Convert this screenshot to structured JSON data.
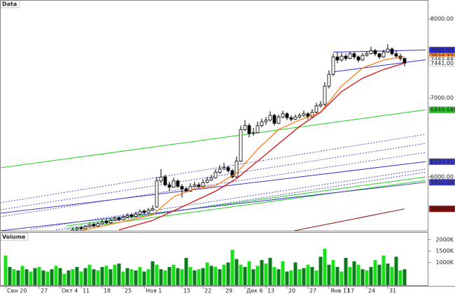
{
  "chart_data": [
    {
      "type": "candlestick",
      "label": "Data",
      "xlim": [
        -1.33,
        100.67
      ],
      "xticks": [
        {
          "value": 0,
          "label": "Сен 20"
        },
        {
          "value": 8,
          "label": "27"
        },
        {
          "value": 13,
          "label": "Окт 4"
        },
        {
          "value": 18,
          "label": "11"
        },
        {
          "value": 23,
          "label": "18"
        },
        {
          "value": 28,
          "label": "25"
        },
        {
          "value": 33,
          "label": "Ноя 1"
        },
        {
          "value": 42,
          "label": "15"
        },
        {
          "value": 47,
          "label": "22"
        },
        {
          "value": 52,
          "label": "29"
        },
        {
          "value": 57,
          "label": "Дек 6"
        },
        {
          "value": 62,
          "label": "13"
        },
        {
          "value": 67,
          "label": "20"
        },
        {
          "value": 72,
          "label": "27"
        },
        {
          "value": 77,
          "label": "Янв 11"
        },
        {
          "value": 81,
          "label": "17"
        },
        {
          "value": 86,
          "label": "24"
        },
        {
          "value": 91,
          "label": "31"
        }
      ],
      "ylim": [
        5320,
        8240
      ],
      "yticks": [
        {
          "value": 8000,
          "label": "8000.00"
        },
        {
          "value": 7000,
          "label": "7000.00"
        },
        {
          "value": 6000,
          "label": "6000.00"
        }
      ],
      "up_color": "#ffffff",
      "down_color": "#000000",
      "x": [
        16,
        17,
        18,
        19,
        20,
        21,
        22,
        23,
        24,
        25,
        26,
        27,
        28,
        29,
        30,
        31,
        32,
        33,
        34,
        35,
        36,
        37,
        38,
        39,
        40,
        41,
        42,
        43,
        44,
        45,
        46,
        47,
        48,
        49,
        50,
        51,
        52,
        53,
        54,
        55,
        56,
        57,
        58,
        59,
        60,
        61,
        62,
        63,
        64,
        65,
        66,
        67,
        68,
        69,
        70,
        71,
        72,
        73,
        74,
        75,
        76,
        77,
        78,
        79,
        80,
        81,
        82,
        83,
        84,
        85,
        86,
        87,
        88,
        89,
        90,
        91,
        92,
        93,
        94,
        95
      ],
      "ohlc": [
        [
          5310,
          5360,
          5300,
          5330
        ],
        [
          5330,
          5370,
          5320,
          5350
        ],
        [
          5360,
          5380,
          5330,
          5345
        ],
        [
          5345,
          5390,
          5330,
          5370
        ],
        [
          5370,
          5420,
          5360,
          5390
        ],
        [
          5400,
          5420,
          5360,
          5380
        ],
        [
          5380,
          5430,
          5370,
          5410
        ],
        [
          5410,
          5460,
          5400,
          5430
        ],
        [
          5440,
          5470,
          5400,
          5420
        ],
        [
          5420,
          5480,
          5410,
          5450
        ],
        [
          5450,
          5500,
          5440,
          5470
        ],
        [
          5480,
          5500,
          5440,
          5460
        ],
        [
          5460,
          5520,
          5450,
          5490
        ],
        [
          5490,
          5540,
          5480,
          5510
        ],
        [
          5520,
          5540,
          5480,
          5500
        ],
        [
          5500,
          5560,
          5490,
          5530
        ],
        [
          5530,
          5590,
          5520,
          5560
        ],
        [
          5570,
          5590,
          5530,
          5550
        ],
        [
          5550,
          5610,
          5540,
          5580
        ],
        [
          5580,
          5640,
          5570,
          5600
        ],
        [
          5620,
          6000,
          5610,
          5950
        ],
        [
          5950,
          6100,
          5920,
          6000
        ],
        [
          6000,
          6030,
          5880,
          5900
        ],
        [
          5900,
          5940,
          5820,
          5870
        ],
        [
          5870,
          5990,
          5860,
          5950
        ],
        [
          5950,
          5970,
          5860,
          5880
        ],
        [
          5880,
          5910,
          5740,
          5850
        ],
        [
          5850,
          5880,
          5800,
          5820
        ],
        [
          5820,
          5920,
          5810,
          5880
        ],
        [
          5880,
          5940,
          5870,
          5900
        ],
        [
          5900,
          5930,
          5850,
          5880
        ],
        [
          5880,
          5970,
          5870,
          5930
        ],
        [
          5930,
          6000,
          5920,
          5960
        ],
        [
          5960,
          6030,
          5950,
          5990
        ],
        [
          5990,
          6100,
          5980,
          6060
        ],
        [
          6060,
          6150,
          6040,
          6100
        ],
        [
          6100,
          6180,
          6090,
          6120
        ],
        [
          6120,
          6140,
          6050,
          6080
        ],
        [
          6080,
          6100,
          5980,
          6000
        ],
        [
          6000,
          6260,
          5990,
          6200
        ],
        [
          6200,
          6650,
          6190,
          6600
        ],
        [
          6600,
          6720,
          6580,
          6650
        ],
        [
          6650,
          6680,
          6500,
          6550
        ],
        [
          6550,
          6620,
          6520,
          6560
        ],
        [
          6560,
          6700,
          6550,
          6650
        ],
        [
          6650,
          6740,
          6630,
          6700
        ],
        [
          6700,
          6760,
          6660,
          6720
        ],
        [
          6720,
          6830,
          6700,
          6780
        ],
        [
          6780,
          6800,
          6650,
          6680
        ],
        [
          6680,
          6790,
          6670,
          6760
        ],
        [
          6760,
          6840,
          6740,
          6800
        ],
        [
          6800,
          6820,
          6720,
          6750
        ],
        [
          6750,
          6780,
          6700,
          6730
        ],
        [
          6730,
          6790,
          6720,
          6760
        ],
        [
          6760,
          6810,
          6740,
          6780
        ],
        [
          6780,
          6840,
          6760,
          6800
        ],
        [
          6800,
          6820,
          6730,
          6760
        ],
        [
          6760,
          6860,
          6750,
          6820
        ],
        [
          6820,
          6940,
          6800,
          6900
        ],
        [
          6900,
          6960,
          6880,
          6920
        ],
        [
          6920,
          7200,
          6900,
          7150
        ],
        [
          7150,
          7350,
          7120,
          7300
        ],
        [
          7300,
          7560,
          7280,
          7520
        ],
        [
          7520,
          7580,
          7440,
          7480
        ],
        [
          7480,
          7570,
          7460,
          7530
        ],
        [
          7530,
          7560,
          7470,
          7500
        ],
        [
          7500,
          7590,
          7490,
          7560
        ],
        [
          7560,
          7580,
          7490,
          7520
        ],
        [
          7520,
          7540,
          7450,
          7480
        ],
        [
          7480,
          7570,
          7470,
          7540
        ],
        [
          7540,
          7590,
          7520,
          7560
        ],
        [
          7560,
          7650,
          7550,
          7600
        ],
        [
          7600,
          7620,
          7530,
          7560
        ],
        [
          7560,
          7570,
          7490,
          7520
        ],
        [
          7520,
          7610,
          7510,
          7580
        ],
        [
          7580,
          7680,
          7570,
          7620
        ],
        [
          7620,
          7640,
          7540,
          7560
        ],
        [
          7560,
          7600,
          7500,
          7530
        ],
        [
          7530,
          7560,
          7470,
          7500
        ],
        [
          7500,
          7510,
          7400,
          7441
        ]
      ],
      "series": [
        {
          "color": "#ff7a1a",
          "x": [
            16,
            25,
            35,
            40,
            45,
            50,
            55,
            60,
            65,
            70,
            75,
            80,
            85,
            90,
            95
          ],
          "values": [
            5300,
            5400,
            5520,
            5750,
            5850,
            5890,
            6050,
            6350,
            6600,
            6720,
            6820,
            7150,
            7380,
            7480,
            7524.72
          ]
        },
        {
          "color": "#dd1111",
          "x": [
            27,
            35,
            42,
            50,
            55,
            60,
            65,
            70,
            75,
            80,
            85,
            90,
            95
          ],
          "values": [
            5330,
            5450,
            5620,
            5820,
            5980,
            6200,
            6420,
            6640,
            6820,
            7080,
            7250,
            7360,
            7441
          ]
        }
      ],
      "lines": [
        {
          "color": "#2c2cd8",
          "dash": false,
          "x": [
            78,
            100
          ],
          "values": [
            7580,
            7606.83
          ]
        },
        {
          "color": "#2c2cd8",
          "dash": false,
          "x": [
            78,
            100
          ],
          "values": [
            7330,
            7483.88
          ]
        },
        {
          "color": "#22cc22",
          "dash": false,
          "x": [
            -1.33,
            100
          ],
          "values": [
            6115,
            6849.689
          ]
        },
        {
          "color": "#22cc22",
          "dash": false,
          "x": [
            14.5,
            100
          ],
          "values": [
            5336,
            5956
          ]
        },
        {
          "color": "#22cc22",
          "dash": false,
          "x": [
            14.5,
            100
          ],
          "values": [
            5380,
            6000
          ]
        },
        {
          "color": "#3a3ac8",
          "dash": false,
          "x": [
            -1.33,
            100
          ],
          "values": [
            5540,
            6193.4196
          ]
        },
        {
          "color": "#3a3ac8",
          "dash": false,
          "x": [
            -1.33,
            100
          ],
          "values": [
            5319,
            5932.2072
          ]
        },
        {
          "color": "#5050c8",
          "dash": true,
          "x": [
            -1.33,
            100
          ],
          "values": [
            5673,
            6540
          ]
        },
        {
          "color": "#5050c8",
          "dash": true,
          "x": [
            -1.33,
            100
          ],
          "values": [
            5584,
            6425
          ]
        },
        {
          "color": "#5050c8",
          "dash": true,
          "x": [
            -1.33,
            100
          ],
          "values": [
            5496,
            6310
          ]
        },
        {
          "color": "#5050c8",
          "dash": true,
          "x": [
            6,
            100
          ],
          "values": [
            5340,
            6100
          ]
        },
        {
          "color": "#5050c8",
          "dash": true,
          "x": [
            12,
            100
          ],
          "values": [
            5330,
            6060
          ]
        },
        {
          "color": "#8a0a0a",
          "dash": false,
          "x": [
            68.7,
            95
          ],
          "values": [
            5319,
            5596.03
          ]
        }
      ],
      "price_tags": [
        {
          "value": 7606.83,
          "label": "7606.83",
          "color": "#2c2cd8"
        },
        {
          "value": 7524.72,
          "label": "7524.72",
          "color": "#ff7a1a"
        },
        {
          "value": 7483.88,
          "label": "7483.88",
          "color": "#ffffff"
        },
        {
          "value": 7441.0,
          "label": "7441.00",
          "color": "#ffffff"
        },
        {
          "value": 6849.689,
          "label": "6849.689",
          "color": "#22cc22"
        },
        {
          "value": 6193.4196,
          "label": "6193.4196",
          "color": "#3a3ac8"
        },
        {
          "value": 5932.2072,
          "label": "5932.2072",
          "color": "#3a3ac8"
        },
        {
          "value": 5596.03,
          "label": "5596.03",
          "color": "#8a0a0a"
        }
      ]
    },
    {
      "type": "bar",
      "label": "Volume",
      "xlim": [
        -1.33,
        100.67
      ],
      "ylim": [
        0,
        2300
      ],
      "yticks": [
        {
          "value": 1000,
          "label": "1000K"
        },
        {
          "value": 1500,
          "label": "1500K"
        },
        {
          "value": 2000,
          "label": "2000K"
        }
      ],
      "colors": [
        "#19e019",
        "#0a7a1a"
      ],
      "x": [
        0,
        1,
        2,
        3,
        4,
        5,
        6,
        7,
        8,
        9,
        10,
        11,
        12,
        13,
        14,
        15,
        16,
        17,
        18,
        19,
        20,
        21,
        22,
        23,
        24,
        25,
        26,
        27,
        28,
        29,
        30,
        31,
        32,
        33,
        34,
        35,
        36,
        37,
        38,
        39,
        40,
        41,
        42,
        43,
        44,
        45,
        46,
        47,
        48,
        49,
        50,
        51,
        52,
        53,
        54,
        55,
        56,
        57,
        58,
        59,
        60,
        61,
        62,
        63,
        64,
        65,
        66,
        67,
        68,
        69,
        70,
        71,
        72,
        73,
        74,
        75,
        76,
        77,
        78,
        79,
        80,
        81,
        82,
        83,
        84,
        85,
        86,
        87,
        88,
        89,
        90,
        91,
        92,
        93,
        94,
        95
      ],
      "values": [
        1300,
        800,
        700,
        650,
        850,
        700,
        600,
        750,
        800,
        650,
        600,
        700,
        850,
        750,
        500,
        650,
        700,
        800,
        600,
        750,
        900,
        700,
        650,
        800,
        850,
        700,
        900,
        950,
        600,
        750,
        700,
        650,
        800,
        600,
        700,
        1050,
        900,
        700,
        650,
        800,
        900,
        750,
        700,
        1200,
        800,
        650,
        700,
        750,
        1000,
        850,
        800,
        700,
        900,
        1000,
        1550,
        1150,
        900,
        800,
        1050,
        700,
        850,
        1100,
        950,
        1200,
        800,
        700,
        1050,
        600,
        650,
        1000,
        700,
        750,
        900,
        800,
        650,
        1250,
        1600,
        900,
        1100,
        800,
        600,
        1200,
        800,
        1050,
        900,
        700,
        650,
        800,
        1100,
        900,
        1300,
        950,
        800,
        1250,
        650,
        700
      ]
    }
  ]
}
